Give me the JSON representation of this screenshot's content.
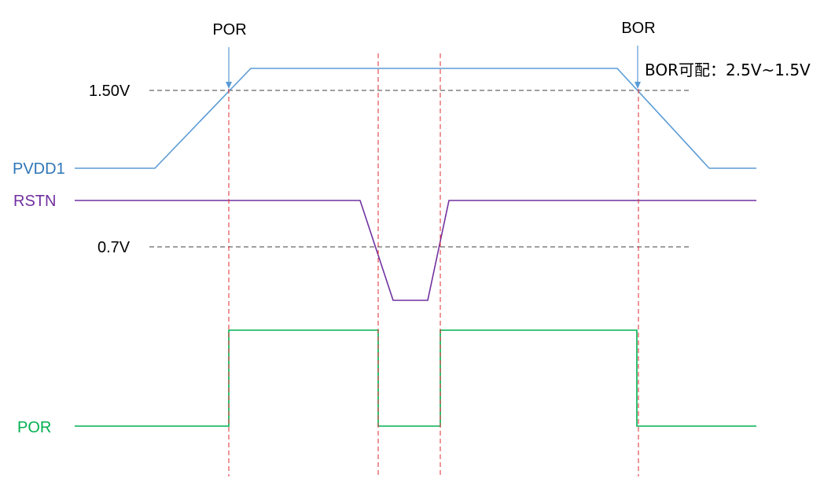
{
  "markers": {
    "por": "POR",
    "bor": "BOR"
  },
  "thresholds": {
    "por_level": "1.50V",
    "rstn_level": "0.7V"
  },
  "annotation": {
    "bor_config": "BOR可配：2.5V~1.5V"
  },
  "signals": {
    "pvdd1": {
      "label": "PVDD1",
      "color": "#5b9bd5"
    },
    "rstn": {
      "label": "RSTN",
      "color": "#7030a0"
    },
    "por": {
      "label": "POR",
      "color": "#00b050"
    }
  },
  "colors": {
    "event_line": "#e0282e",
    "threshold_line": "#404040",
    "marker_arrow": "#5b9bd5"
  }
}
